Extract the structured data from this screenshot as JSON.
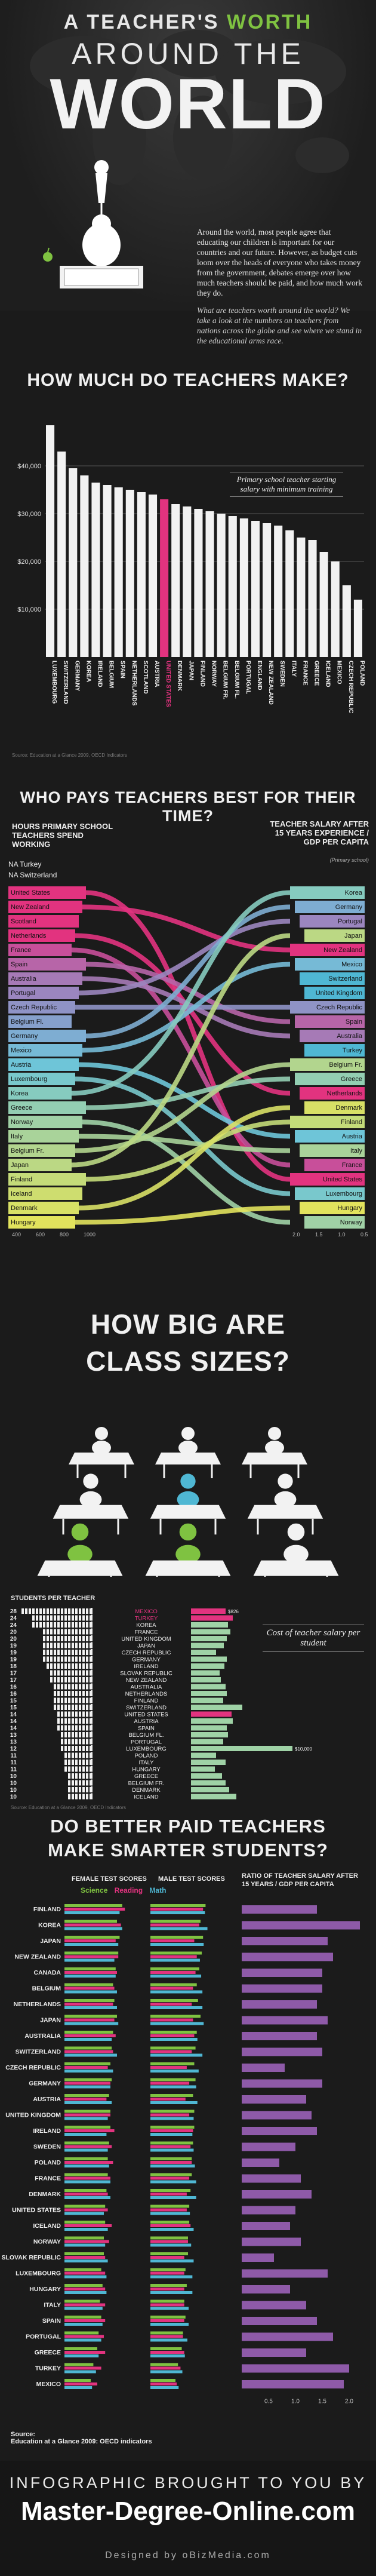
{
  "header": {
    "line1_pre": "A TEACHER'S",
    "line1_worth": "WORTH",
    "line2": "AROUND THE",
    "line3": "WORLD"
  },
  "intro": {
    "p1": "Around the world, most people agree that educating our children is important for our countries and our future. However, as budget cuts loom over the heads of everyone who takes money from the government, debates emerge over how much teachers should be paid, and how much work they do.",
    "p2": "What are teachers worth around the world? We take a look at the numbers on teachers from nations across the globe and see where we stand in the educational arms race."
  },
  "salary_section": {
    "title": "HOW MUCH DO TEACHERS MAKE?",
    "legend": "Primary school teacher starting salary with minimum training",
    "source": "Source: Education at a Glance 2009, OECD Indicators",
    "highlight_color": "#e2337f"
  },
  "time_section": {
    "title": "WHO PAYS TEACHERS BEST FOR THEIR TIME?",
    "left_label": "HOURS PRIMARY SCHOOL TEACHERS SPEND WORKING",
    "right_label": "TEACHER SALARY AFTER 15 YEARS EXPERIENCE / GDP PER CAPITA",
    "right_sub": "(Primary school)",
    "na_turkey": "NA Turkey",
    "na_switzerland": "NA Switzerland",
    "left_countries": [
      "United States",
      "New Zealand",
      "Scotland",
      "Netherlands",
      "France",
      "Spain",
      "Australia",
      "Portugal",
      "Czech Republic",
      "Belgium Fl.",
      "Germany",
      "Mexico",
      "Austria",
      "Luxembourg",
      "Korea",
      "Greece",
      "Norway",
      "Italy",
      "Belgium Fr.",
      "Japan",
      "Finland",
      "Iceland",
      "Denmark",
      "Hungary"
    ],
    "right_countries": [
      "Korea",
      "Germany",
      "Portugal",
      "Japan",
      "New Zealand",
      "Mexico",
      "Switzerland",
      "United Kingdom",
      "Czech Republic",
      "Spain",
      "Australia",
      "Turkey",
      "Belgium Fr.",
      "Greece",
      "Netherlands",
      "Denmark",
      "Finland",
      "Austria",
      "Italy",
      "France",
      "United States",
      "Luxembourg",
      "Hungary",
      "Norway"
    ],
    "left_ticks": [
      "400",
      "600",
      "800",
      "1000"
    ],
    "right_ticks": [
      "2.0",
      "1.5",
      "1.0",
      "0.5"
    ]
  },
  "class_section": {
    "title_line1": "HOW BIG ARE",
    "title_line2": "CLASS SIZES?",
    "left_header": "STUDENTS PER TEACHER",
    "cost_label": "Cost of teacher salary per student",
    "source": "Source: Education at a Glance 2009, OECD Indicators",
    "rows": [
      {
        "n": "28",
        "country": "MEXICO",
        "cost": "$826",
        "hl": true
      },
      {
        "n": "24",
        "country": "TURKEY",
        "cost": "",
        "hl": true
      },
      {
        "n": "24",
        "country": "KOREA",
        "cost": "",
        "hl": false
      },
      {
        "n": "20",
        "country": "FRANCE",
        "cost": "",
        "hl": false
      },
      {
        "n": "20",
        "country": "UNITED KINGDOM",
        "cost": "",
        "hl": false
      },
      {
        "n": "19",
        "country": "JAPAN",
        "cost": "",
        "hl": false
      },
      {
        "n": "19",
        "country": "CZECH REPUBLIC",
        "cost": "",
        "hl": false
      },
      {
        "n": "19",
        "country": "GERMANY",
        "cost": "",
        "hl": false
      },
      {
        "n": "18",
        "country": "IRELAND",
        "cost": "",
        "hl": false
      },
      {
        "n": "17",
        "country": "SLOVAK REPUBLIC",
        "cost": "",
        "hl": false
      },
      {
        "n": "17",
        "country": "NEW ZEALAND",
        "cost": "",
        "hl": false
      },
      {
        "n": "16",
        "country": "AUSTRALIA",
        "cost": "",
        "hl": false
      },
      {
        "n": "16",
        "country": "NETHERLANDS",
        "cost": "",
        "hl": false
      },
      {
        "n": "15",
        "country": "FINLAND",
        "cost": "",
        "hl": false
      },
      {
        "n": "15",
        "country": "SWITZERLAND",
        "cost": "",
        "hl": false
      },
      {
        "n": "14",
        "country": "UNITED STATES",
        "cost": "",
        "hl": false
      },
      {
        "n": "14",
        "country": "AUSTRIA",
        "cost": "",
        "hl": false
      },
      {
        "n": "14",
        "country": "SPAIN",
        "cost": "",
        "hl": false
      },
      {
        "n": "13",
        "country": "BELGIUM FL.",
        "cost": "",
        "hl": false
      },
      {
        "n": "13",
        "country": "PORTUGAL",
        "cost": "",
        "hl": false
      },
      {
        "n": "12",
        "country": "LUXEMBOURG",
        "cost": "$10,000",
        "hl": false
      },
      {
        "n": "11",
        "country": "POLAND",
        "cost": "",
        "hl": false
      },
      {
        "n": "11",
        "country": "ITALY",
        "cost": "",
        "hl": false
      },
      {
        "n": "11",
        "country": "HUNGARY",
        "cost": "",
        "hl": false
      },
      {
        "n": "10",
        "country": "GREECE",
        "cost": "",
        "hl": false
      },
      {
        "n": "10",
        "country": "BELGIUM FR.",
        "cost": "",
        "hl": false
      },
      {
        "n": "10",
        "country": "DENMARK",
        "cost": "",
        "hl": false
      },
      {
        "n": "10",
        "country": "ICELAND",
        "cost": "",
        "hl": false
      }
    ]
  },
  "smart_section": {
    "title_line1": "DO BETTER PAID TEACHERS",
    "title_line2": "MAKE SMARTER STUDENTS?",
    "female_label": "FEMALE TEST SCORES",
    "male_label": "MALE TEST SCORES",
    "ratio_label": "RATIO OF TEACHER SALARY AFTER 15 YEARS / GDP PER CAPITA",
    "legend_science": "Science",
    "legend_reading": "Reading",
    "legend_math": "Math",
    "science_color": "#7fc241",
    "reading_color": "#e2337f",
    "math_color": "#4fb7d3",
    "ratio_color": "#8e5aa8",
    "ratio_ticks": [
      "0.5",
      "1.0",
      "1.5",
      "2.0"
    ],
    "countries": [
      "FINLAND",
      "KOREA",
      "JAPAN",
      "NEW ZEALAND",
      "CANADA",
      "BELGIUM",
      "NETHERLANDS",
      "JAPAN",
      "AUSTRALIA",
      "SWITZERLAND",
      "CZECH REPUBLIC",
      "GERMANY",
      "AUSTRIA",
      "UNITED KINGDOM",
      "IRELAND",
      "SWEDEN",
      "POLAND",
      "FRANCE",
      "DENMARK",
      "UNITED STATES",
      "ICELAND",
      "NORWAY",
      "SLOVAK REPUBLIC",
      "LUXEMBOURG",
      "HUNGARY",
      "ITALY",
      "SPAIN",
      "PORTUGAL",
      "GREECE",
      "TURKEY",
      "MEXICO"
    ],
    "source_label": "Source:",
    "source_text": "Education at a Glance 2009: OECD indicators"
  },
  "footer": {
    "brought": "INFOGRAPHIC BROUGHT TO YOU BY",
    "site": "Master-Degree-Online.com",
    "designed": "Designed by oBizMedia.com"
  },
  "chart_data": [
    {
      "type": "bar",
      "title": "HOW MUCH DO TEACHERS MAKE?",
      "categories": [
        "Luxembourg",
        "Switzerland",
        "Germany",
        "Korea",
        "Ireland",
        "Belgium",
        "Spain",
        "Netherlands",
        "Scotland",
        "Austria",
        "United States",
        "Denmark",
        "Japan",
        "Finland",
        "Norway",
        "Belgium Fr.",
        "Belgium Fl.",
        "Portugal",
        "England",
        "New Zealand",
        "Sweden",
        "Italy",
        "France",
        "Greece",
        "Iceland",
        "Mexico",
        "Czech Republic",
        "Poland"
      ],
      "values": [
        48500,
        43000,
        39500,
        38000,
        36500,
        36000,
        35500,
        35000,
        34500,
        34000,
        33000,
        32000,
        31500,
        31000,
        30500,
        30000,
        29500,
        29000,
        28500,
        28000,
        27500,
        26500,
        25000,
        24500,
        22000,
        20000,
        15000,
        12000
      ],
      "highlight": "United States",
      "ylim": [
        0,
        50000
      ],
      "yticks": [
        "$10,000",
        "$20,000",
        "$30,000",
        "$40,000"
      ]
    },
    {
      "type": "bar",
      "title": "DO BETTER PAID TEACHERS MAKE SMARTER STUDENTS?",
      "categories": [
        "FINLAND",
        "KOREA",
        "JAPAN",
        "NEW ZEALAND",
        "CANADA",
        "BELGIUM",
        "NETHERLANDS",
        "JAPAN",
        "AUSTRALIA",
        "SWITZERLAND",
        "CZECH REPUBLIC",
        "GERMANY",
        "AUSTRIA",
        "UNITED KINGDOM",
        "IRELAND",
        "SWEDEN",
        "POLAND",
        "FRANCE",
        "DENMARK",
        "UNITED STATES",
        "ICELAND",
        "NORWAY",
        "SLOVAK REPUBLIC",
        "LUXEMBOURG",
        "HUNGARY",
        "ITALY",
        "SPAIN",
        "PORTUGAL",
        "GREECE",
        "TURKEY",
        "MEXICO"
      ],
      "series": [
        {
          "name": "Ratio",
          "values": [
            1.4,
            2.2,
            1.6,
            1.7,
            1.5,
            1.5,
            1.4,
            1.6,
            1.4,
            1.5,
            0.8,
            1.5,
            1.2,
            1.3,
            1.4,
            1.0,
            0.7,
            1.1,
            1.3,
            1.0,
            0.9,
            1.1,
            0.6,
            1.6,
            0.9,
            1.2,
            1.4,
            1.7,
            1.2,
            2.0,
            1.9
          ]
        }
      ]
    }
  ]
}
